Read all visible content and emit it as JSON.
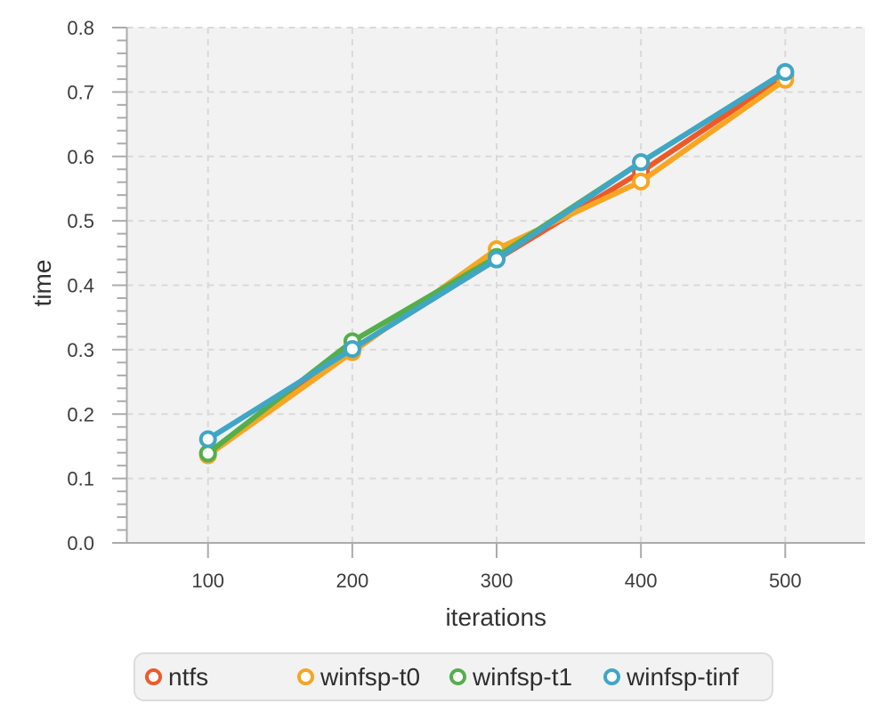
{
  "chart_data": {
    "type": "line",
    "title": "",
    "xlabel": "iterations",
    "ylabel": "time",
    "x": [
      100,
      200,
      300,
      400,
      500
    ],
    "series": [
      {
        "name": "ntfs",
        "color": "#ed5a29",
        "values": [
          0.139,
          0.301,
          0.44,
          0.576,
          0.726
        ]
      },
      {
        "name": "winfsp-t0",
        "color": "#f6a623",
        "values": [
          0.136,
          0.296,
          0.456,
          0.561,
          0.719
        ]
      },
      {
        "name": "winfsp-t1",
        "color": "#54af4b",
        "values": [
          0.139,
          0.313,
          0.444,
          0.591,
          0.731
        ]
      },
      {
        "name": "winfsp-tinf",
        "color": "#40a6c6",
        "values": [
          0.161,
          0.301,
          0.44,
          0.591,
          0.731
        ]
      }
    ],
    "x_tick_labels": [
      "100",
      "200",
      "300",
      "400",
      "500"
    ],
    "y_tick_labels": [
      "0.0",
      "0.1",
      "0.2",
      "0.3",
      "0.4",
      "0.5",
      "0.6",
      "0.7",
      "0.8"
    ],
    "ylim": [
      0.0,
      0.8
    ],
    "y_major_step": 0.1,
    "y_minor_step": 0.02,
    "grid": "dashed",
    "legend_position": "bottom",
    "legend_items": [
      "ntfs",
      "winfsp-t0",
      "winfsp-t1",
      "winfsp-tinf"
    ]
  },
  "style": {
    "page_bg": "#ffffff",
    "panel_bg": "#f2f2f2",
    "grid_color": "#d9d9d9",
    "axis_color": "#ababab",
    "tick_label_color": "#3d3d3d",
    "axis_title_color": "#333333",
    "legend_bg": "#f2f2f2",
    "legend_border": "#dcdcdc",
    "legend_text_color": "#2d2d2d",
    "marker_fill": "#ffffff"
  }
}
